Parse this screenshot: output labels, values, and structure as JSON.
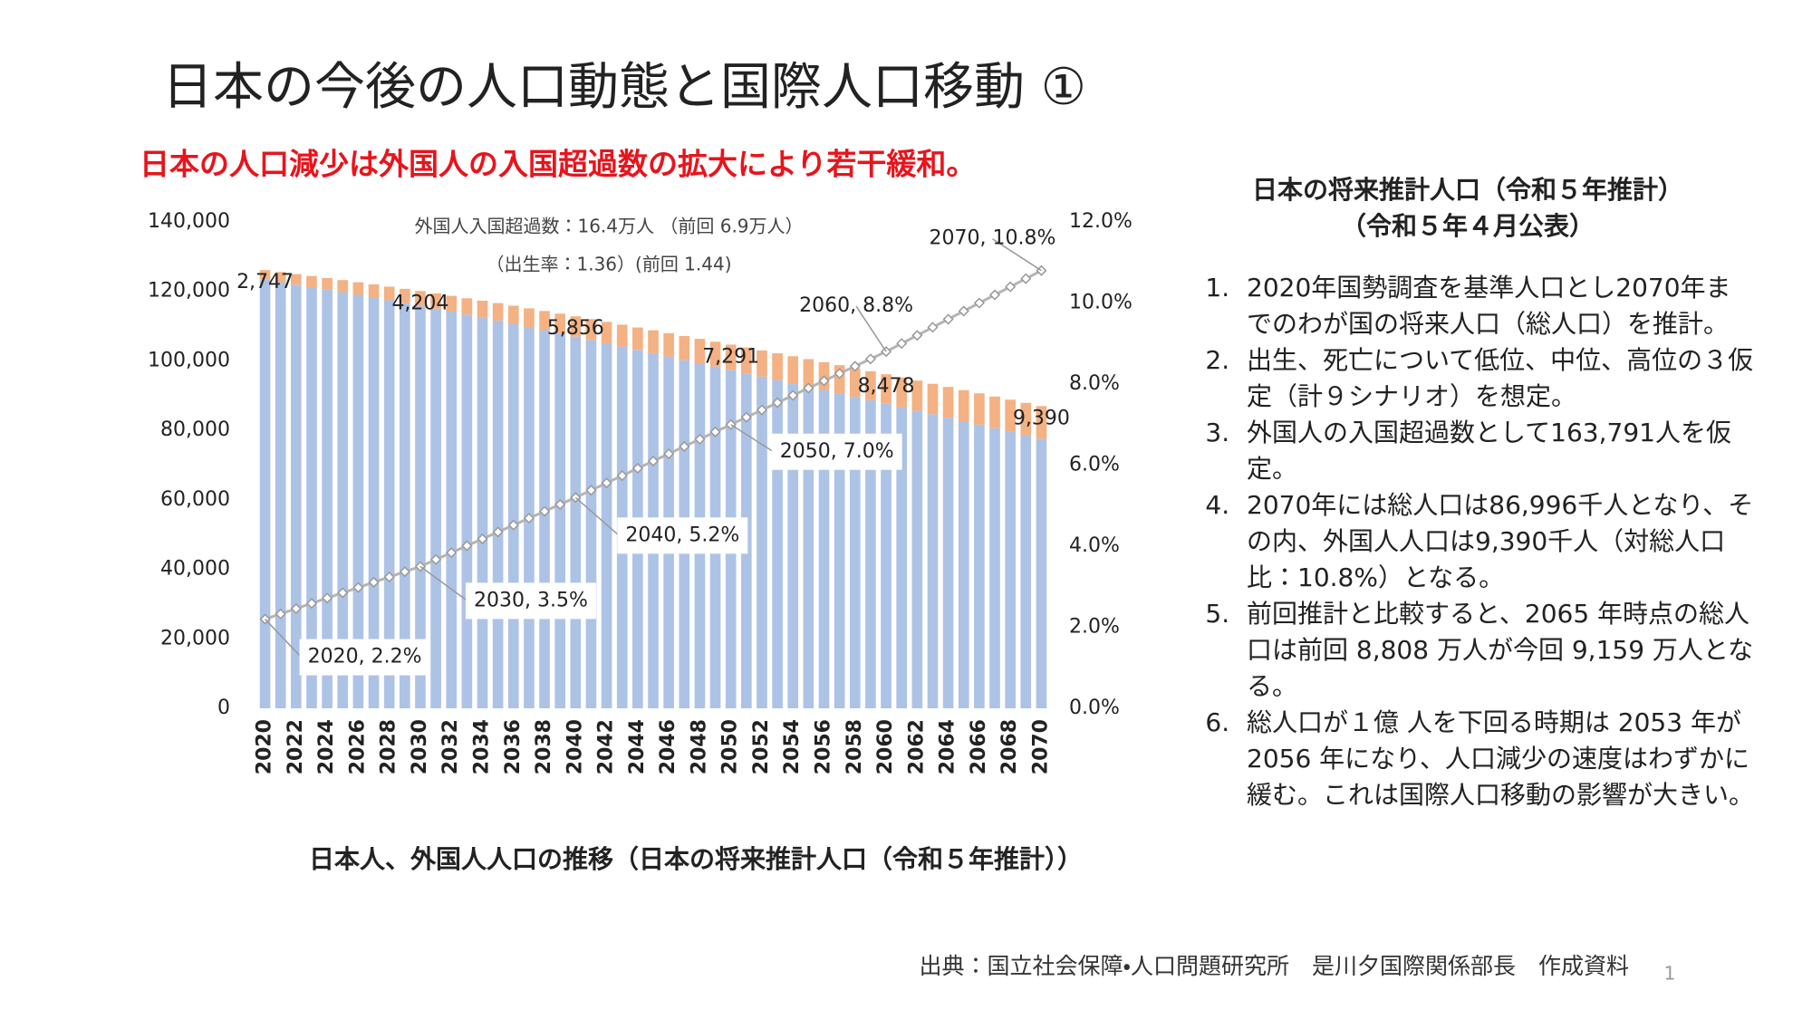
{
  "header": {
    "title": "日本の今後の人口動態と国際人口移動 ①",
    "subtitle": "日本の人口減少は外国人の入国超過数の拡大により若干緩和。"
  },
  "chart_data": {
    "type": "bar",
    "stacked": true,
    "title": "日本人、外国人人口の推移（日本の将来推計人口（令和５年推計））",
    "annotations": [
      "外国人入国超過数：16.4万人 （前回 6.9万人）",
      "（出生率：1.36）(前回 1.44)"
    ],
    "categories": [
      "2020",
      null,
      "2022",
      null,
      "2024",
      null,
      "2026",
      null,
      "2028",
      null,
      "2030",
      null,
      "2032",
      null,
      "2034",
      null,
      "2036",
      null,
      "2038",
      null,
      "2040",
      null,
      "2042",
      null,
      "2044",
      null,
      "2046",
      null,
      "2048",
      null,
      "2050",
      null,
      "2052",
      null,
      "2054",
      null,
      "2056",
      null,
      "2058",
      null,
      "2060",
      null,
      "2062",
      null,
      "2064",
      null,
      "2066",
      null,
      "2068",
      null,
      "2070"
    ],
    "series": [
      {
        "color": "#adc3e6",
        "values": [
          123399,
          122676,
          121954,
          121232,
          120509,
          119786,
          119012,
          118237,
          117461,
          116687,
          115912,
          115052,
          114191,
          113330,
          112469,
          111609,
          110684,
          109758,
          108832,
          107907,
          106981,
          106030,
          105079,
          104128,
          103178,
          102227,
          101261,
          100294,
          99328,
          98361,
          97395,
          96440,
          95487,
          94532,
          93578,
          92623,
          91633,
          90642,
          89651,
          88661,
          87670,
          86667,
          85664,
          84660,
          83656,
          82653,
          81644,
          80635,
          79624,
          78615,
          77606
        ]
      },
      {
        "color": "#f4b183",
        "values": [
          2747,
          2893,
          3038,
          3184,
          3330,
          3476,
          3621,
          3767,
          3913,
          4058,
          4204,
          4369,
          4534,
          4700,
          4865,
          5030,
          5195,
          5360,
          5526,
          5691,
          5856,
          6000,
          6143,
          6287,
          6430,
          6574,
          6717,
          6861,
          7004,
          7148,
          7291,
          7410,
          7528,
          7647,
          7766,
          7885,
          8003,
          8122,
          8241,
          8359,
          8478,
          8569,
          8660,
          8752,
          8843,
          8934,
          9025,
          9116,
          9208,
          9299,
          9390
        ],
        "value_labels": [
          "2,747",
          null,
          null,
          null,
          null,
          null,
          null,
          null,
          null,
          null,
          "4,204",
          null,
          null,
          null,
          null,
          null,
          null,
          null,
          null,
          null,
          "5,856",
          null,
          null,
          null,
          null,
          null,
          null,
          null,
          null,
          null,
          "7,291",
          null,
          null,
          null,
          null,
          null,
          null,
          null,
          null,
          null,
          "8,478",
          null,
          null,
          null,
          null,
          null,
          null,
          null,
          null,
          null,
          "9,390"
        ]
      },
      {
        "type": "line",
        "axis": "y2",
        "color": "#b4b4b4",
        "values": [
          2.2,
          2.33,
          2.46,
          2.59,
          2.72,
          2.85,
          2.98,
          3.11,
          3.24,
          3.37,
          3.5,
          3.67,
          3.84,
          4.01,
          4.18,
          4.35,
          4.52,
          4.69,
          4.86,
          5.03,
          5.2,
          5.38,
          5.56,
          5.74,
          5.92,
          6.1,
          6.28,
          6.46,
          6.64,
          6.82,
          7.0,
          7.18,
          7.36,
          7.54,
          7.72,
          7.9,
          8.08,
          8.26,
          8.44,
          8.62,
          8.8,
          9.0,
          9.2,
          9.4,
          9.6,
          9.8,
          10.0,
          10.2,
          10.4,
          10.6,
          10.8
        ],
        "value_labels": [
          "2020, 2.2%",
          null,
          null,
          null,
          null,
          null,
          null,
          null,
          null,
          null,
          "2030, 3.5%",
          null,
          null,
          null,
          null,
          null,
          null,
          null,
          null,
          null,
          "2040, 5.2%",
          null,
          null,
          null,
          null,
          null,
          null,
          null,
          null,
          null,
          "2050, 7.0%",
          null,
          null,
          null,
          null,
          null,
          null,
          null,
          null,
          null,
          "2060, 8.8%",
          null,
          null,
          null,
          null,
          null,
          null,
          null,
          null,
          null,
          "2070, 10.8%"
        ]
      }
    ],
    "ylim": [
      0,
      140000
    ],
    "yticks": [
      0,
      {
        "value": 20000,
        "label": "20,000"
      },
      {
        "value": 40000,
        "label": "40,000"
      },
      {
        "value": 60000,
        "label": "60,000"
      },
      {
        "value": 80000,
        "label": "80,000"
      },
      {
        "value": 100000,
        "label": "100,000"
      },
      {
        "value": 120000,
        "label": "120,000"
      },
      {
        "value": 140000,
        "label": "140,000"
      }
    ],
    "y2lim": [
      0,
      12
    ],
    "y2ticks": [
      {
        "value": 0,
        "label": "0.0%"
      },
      {
        "value": 2,
        "label": "2.0%"
      },
      {
        "value": 4,
        "label": "4.0%"
      },
      {
        "value": 6,
        "label": "6.0%"
      },
      {
        "value": 8,
        "label": "8.0%"
      },
      {
        "value": 10,
        "label": "10.0%"
      },
      {
        "value": 12,
        "label": "12.0%"
      }
    ],
    "grid": false
  },
  "panel": {
    "title": [
      "日本の将来推計人口（令和５年推計）",
      "（令和５年４月公表）"
    ],
    "items": [
      "2020年国勢調査を基準人口とし2070年までのわが国の将来人口（総人口）を推計。",
      "出生、死亡について低位、中位、高位の３仮定（計９シナリオ）を想定。",
      "外国人の入国超過数として163,791人を仮定。",
      "2070年には総人口は86,996千人となり、その内、外国人人口は9,390千人（対総人口比：10.8%）となる。",
      "前回推計と比較すると、2065 年時点の総人口は前回 8,808 万人が今回 9,159 万人となる。",
      "総人口が１億 人を下回る時期は 2053 年が 2056 年になり、人口減少の速度はわずかに緩む。これは国際人口移動の影響が大きい。"
    ]
  },
  "footer": {
    "source": "出典：国立社会保障・人口問題研究所　是川夕国際関係部長　作成資料",
    "page": "1"
  }
}
